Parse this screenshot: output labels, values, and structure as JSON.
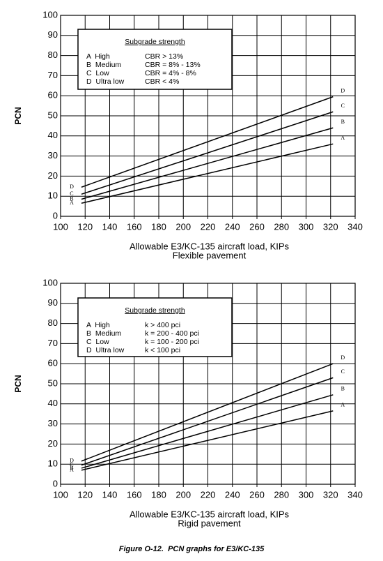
{
  "chart_data": [
    {
      "type": "line",
      "ylabel": "PCN",
      "xlabel": "Allowable E3/KC-135 aircraft load, KIPs",
      "subtitle": "Flexible pavement",
      "x": [
        117,
        322
      ],
      "series": [
        {
          "name": "A",
          "color": "#000000",
          "values": [
            6.5,
            36
          ]
        },
        {
          "name": "B",
          "color": "#000000",
          "values": [
            8.5,
            44
          ]
        },
        {
          "name": "C",
          "color": "#000000",
          "values": [
            11,
            52
          ]
        },
        {
          "name": "D",
          "color": "#000000",
          "values": [
            14.5,
            59.5
          ]
        }
      ],
      "legend_title": "Subgrade strength",
      "legend_rows": [
        [
          "A  High",
          "CBR > 13%"
        ],
        [
          "B  Medium",
          "CBR = 8% - 13%"
        ],
        [
          "C  Low",
          "CBR = 4% - 8%"
        ],
        [
          "D  Ultra low",
          "CBR < 4%"
        ]
      ],
      "xlim": [
        100,
        340
      ],
      "xticks": [
        100,
        120,
        140,
        160,
        180,
        200,
        220,
        240,
        260,
        280,
        300,
        320,
        340
      ],
      "ylim": [
        0,
        100
      ],
      "yticks": [
        0,
        10,
        20,
        30,
        40,
        50,
        60,
        70,
        80,
        90,
        100
      ],
      "grid": true
    },
    {
      "type": "line",
      "ylabel": "PCN",
      "xlabel": "Allowable E3/KC-135 aircraft load, KIPs",
      "subtitle": "Rigid pavement",
      "x": [
        117,
        322
      ],
      "series": [
        {
          "name": "A",
          "color": "#000000",
          "values": [
            7,
            36.5
          ]
        },
        {
          "name": "B",
          "color": "#000000",
          "values": [
            8,
            44.5
          ]
        },
        {
          "name": "C",
          "color": "#000000",
          "values": [
            9.5,
            53
          ]
        },
        {
          "name": "D",
          "color": "#000000",
          "values": [
            11.5,
            60
          ]
        }
      ],
      "legend_title": "Subgrade strength",
      "legend_rows": [
        [
          "A  High",
          "k > 400 pci"
        ],
        [
          "B  Medium",
          "k = 200 - 400 pci"
        ],
        [
          "C  Low",
          "k = 100 - 200 pci"
        ],
        [
          "D  Ultra low",
          "k < 100 pci"
        ]
      ],
      "xlim": [
        100,
        340
      ],
      "xticks": [
        100,
        120,
        140,
        160,
        180,
        200,
        220,
        240,
        260,
        280,
        300,
        320,
        340
      ],
      "ylim": [
        0,
        100
      ],
      "yticks": [
        0,
        10,
        20,
        30,
        40,
        50,
        60,
        70,
        80,
        90,
        100
      ],
      "grid": true
    }
  ],
  "caption": "Figure O-12.  PCN graphs for E3/KC-135"
}
